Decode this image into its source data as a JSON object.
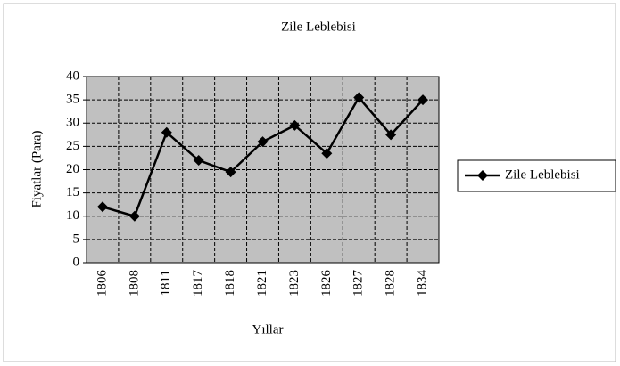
{
  "chart_data": {
    "type": "line",
    "title": "Zile Leblebisi",
    "x_label": "Yıllar",
    "y_label": "Fiyatlar (Para)",
    "categories": [
      "1806",
      "1808",
      "1811",
      "1817",
      "1818",
      "1821",
      "1823",
      "1826",
      "1827",
      "1828",
      "1834"
    ],
    "series": [
      {
        "name": "Zile Leblebisi",
        "color": "#000000",
        "values": [
          12,
          10,
          28,
          22,
          19.5,
          26,
          29.5,
          23.5,
          35.5,
          27.5,
          35
        ]
      }
    ],
    "ylim": [
      0,
      40
    ],
    "yticks": [
      0,
      5,
      10,
      15,
      20,
      25,
      30,
      35,
      40
    ],
    "grid": true,
    "legend": "right"
  }
}
